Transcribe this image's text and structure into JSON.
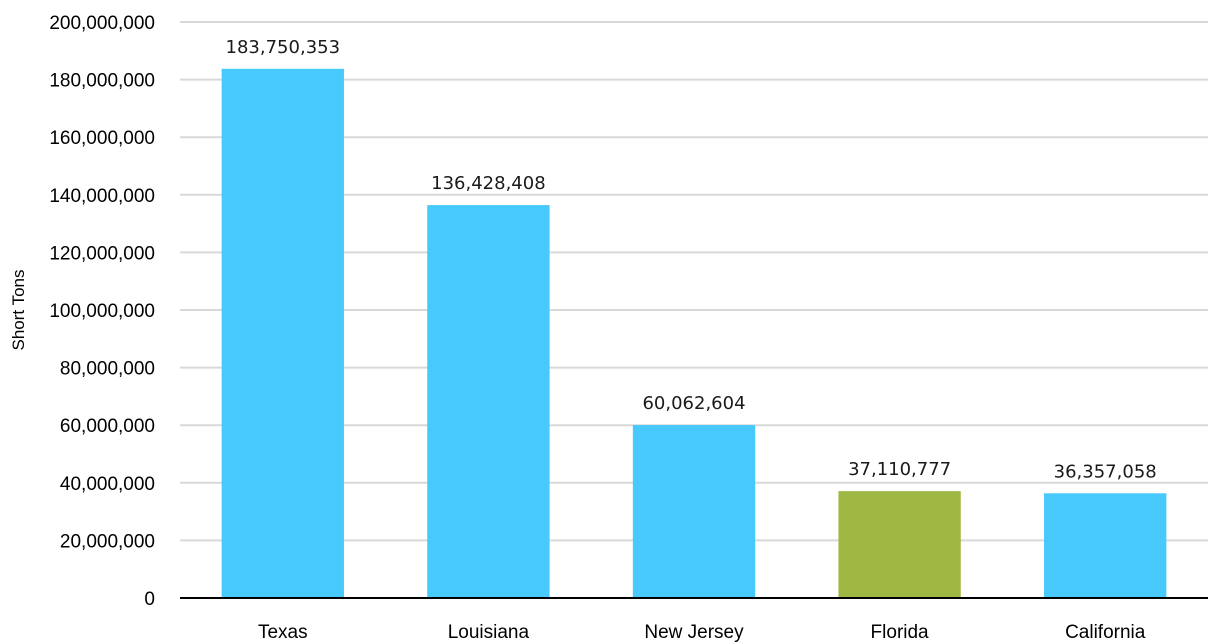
{
  "chart_data": {
    "type": "bar",
    "categories": [
      "Texas",
      "Louisiana",
      "New Jersey",
      "Florida",
      "California"
    ],
    "values": [
      183750353,
      136428408,
      60062604,
      37110777,
      36357058
    ],
    "value_labels": [
      "183,750,353",
      "136,428,408",
      "60,062,604",
      "37,110,777",
      "36,357,058"
    ],
    "colors": [
      "#48c9fc",
      "#48c9fc",
      "#48c9fc",
      "#9fb743",
      "#48c9fc"
    ],
    "title": "",
    "xlabel": "",
    "ylabel": "Short Tons",
    "ylim": [
      0,
      200000000
    ],
    "yticks": [
      0,
      20000000,
      40000000,
      60000000,
      80000000,
      100000000,
      120000000,
      140000000,
      160000000,
      180000000,
      200000000
    ],
    "ytick_labels": [
      "0",
      "20,000,000",
      "40,000,000",
      "60,000,000",
      "80,000,000",
      "100,000,000",
      "120,000,000",
      "140,000,000",
      "160,000,000",
      "180,000,000",
      "200,000,000"
    ],
    "grid": true,
    "legend": "none"
  }
}
